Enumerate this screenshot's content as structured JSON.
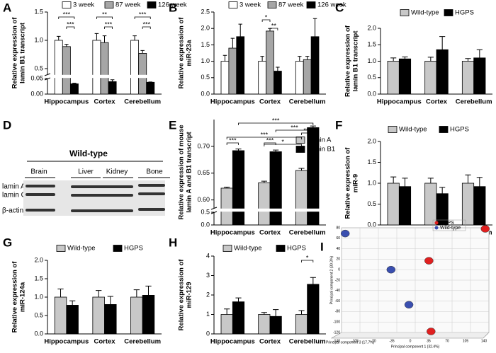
{
  "chart_data": [
    {
      "panel": "A",
      "type": "bar",
      "ylabel": [
        "Relative expression of",
        "lamin B1 transcript"
      ],
      "categories": [
        "Hippocampus",
        "Cortex",
        "Cerebellum"
      ],
      "series": [
        {
          "name": "3 week",
          "color": "#ffffff",
          "values": [
            1.0,
            1.0,
            1.0
          ],
          "errors": [
            0.07,
            0.12,
            0.08
          ]
        },
        {
          "name": "87 week",
          "color": "#a6a6a6",
          "values": [
            0.89,
            0.96,
            0.77
          ],
          "errors": [
            0.04,
            0.12,
            0.05
          ]
        },
        {
          "name": "126 week",
          "color": "#000000",
          "values": [
            0.033,
            0.04,
            0.038
          ],
          "errors": [
            0.002,
            0.006,
            0.001
          ]
        }
      ],
      "ylim": [
        0,
        1.5
      ],
      "ybreak": [
        0.05,
        0.4
      ],
      "yticks": [
        {
          "value": 0,
          "label": "0.00"
        },
        0.05,
        0.5,
        {
          "value": 1,
          "label": "1.0"
        },
        1.5
      ],
      "annotations": [
        "***",
        "***",
        "**",
        "***",
        "***",
        "***"
      ]
    },
    {
      "panel": "B",
      "type": "bar",
      "ylabel": [
        "Relative expression of",
        "miR-23a"
      ],
      "categories": [
        "Hippocampus",
        "Cortex",
        "Cerebellum"
      ],
      "series": [
        {
          "name": "3 week",
          "color": "#ffffff",
          "values": [
            1.0,
            1.0,
            1.0
          ],
          "errors": [
            0.18,
            0.15,
            0.15
          ]
        },
        {
          "name": "87 week",
          "color": "#a6a6a6",
          "values": [
            1.4,
            1.92,
            1.05
          ],
          "errors": [
            0.3,
            0.08,
            0.1
          ]
        },
        {
          "name": "126 week",
          "color": "#000000",
          "values": [
            1.75,
            0.7,
            1.75
          ],
          "errors": [
            0.38,
            0.12,
            0.55
          ]
        }
      ],
      "ylim": [
        0,
        2.5
      ],
      "yticks": [
        {
          "value": 0,
          "label": "0.0"
        },
        0.5,
        {
          "value": 1,
          "label": "1.0"
        },
        1.5,
        {
          "value": 2,
          "label": "2.0"
        },
        2.5
      ],
      "annotations": [
        "*",
        "**"
      ]
    },
    {
      "panel": "C",
      "type": "bar",
      "ylabel": [
        "Relative expression of",
        "lamin B1 transcript"
      ],
      "categories": [
        "Hippocampus",
        "Cortex",
        "Cerebellum"
      ],
      "series": [
        {
          "name": "Wild-type",
          "color": "#c8c8c8",
          "values": [
            1.0,
            1.0,
            1.0
          ],
          "errors": [
            0.1,
            0.12,
            0.08
          ]
        },
        {
          "name": "HGPS",
          "color": "#000000",
          "values": [
            1.07,
            1.35,
            1.1
          ],
          "errors": [
            0.06,
            0.4,
            0.25
          ]
        }
      ],
      "ylim": [
        0,
        2
      ],
      "yticks": [
        {
          "value": 0,
          "label": "0.0"
        },
        0.5,
        {
          "value": 1,
          "label": "1.0"
        },
        1.5,
        {
          "value": 2,
          "label": "2.0"
        }
      ]
    },
    {
      "panel": "E",
      "type": "bar",
      "ylabel": [
        "Relative expression of mouse",
        "lamin A and B1 transcript"
      ],
      "categories": [
        "Hippocampus",
        "Cortex",
        "Cerebellum"
      ],
      "series": [
        {
          "name": "Lamin A",
          "color": "#c8c8c8",
          "values": [
            0.622,
            0.632,
            0.655
          ],
          "errors": [
            0.002,
            0.003,
            0.004
          ]
        },
        {
          "name": "Lamin B1",
          "color": "#000000",
          "values": [
            0.692,
            0.69,
            0.735
          ],
          "errors": [
            0.003,
            0.003,
            0.003
          ]
        }
      ],
      "ylim": [
        0,
        0.75
      ],
      "ybreak": [
        0.5,
        0.585
      ],
      "yticks": [
        {
          "value": 0,
          "label": "0.0"
        },
        0.5,
        {
          "value": 0.6,
          "label": "0.60"
        },
        0.65,
        {
          "value": 0.7,
          "label": "0.70"
        }
      ],
      "annotations": [
        "***",
        "***",
        "***",
        "*",
        "***",
        "***",
        "***"
      ]
    },
    {
      "panel": "F",
      "type": "bar",
      "ylabel": [
        "Relative expression of",
        "miR-9"
      ],
      "categories": [
        "Hippocampus",
        "Cortex",
        "Cerebellum"
      ],
      "series": [
        {
          "name": "Wild-type",
          "color": "#c8c8c8",
          "values": [
            1.0,
            1.0,
            1.0
          ],
          "errors": [
            0.15,
            0.12,
            0.2
          ]
        },
        {
          "name": "HGPS",
          "color": "#000000",
          "values": [
            0.92,
            0.75,
            0.92
          ],
          "errors": [
            0.2,
            0.15,
            0.22
          ]
        }
      ],
      "ylim": [
        0,
        2
      ],
      "yticks": [
        {
          "value": 0,
          "label": "0.0"
        },
        0.5,
        {
          "value": 1,
          "label": "1.0"
        },
        1.5,
        {
          "value": 2,
          "label": "2.0"
        }
      ]
    },
    {
      "panel": "G",
      "type": "bar",
      "ylabel": [
        "Relative expression of",
        "miR-124a"
      ],
      "categories": [
        "Hippocampus",
        "Cortex",
        "Cerebellum"
      ],
      "series": [
        {
          "name": "Wild-type",
          "color": "#c8c8c8",
          "values": [
            1.0,
            1.0,
            1.0
          ],
          "errors": [
            0.22,
            0.18,
            0.2
          ]
        },
        {
          "name": "HGPS",
          "color": "#000000",
          "values": [
            0.78,
            0.8,
            1.05
          ],
          "errors": [
            0.12,
            0.22,
            0.25
          ]
        }
      ],
      "ylim": [
        0,
        2
      ],
      "yticks": [
        {
          "value": 0,
          "label": "0.0"
        },
        0.5,
        {
          "value": 1,
          "label": "1.0"
        },
        1.5,
        {
          "value": 2,
          "label": "2.0"
        }
      ]
    },
    {
      "panel": "H",
      "type": "bar",
      "ylabel": [
        "Relative expression of",
        "miR-129"
      ],
      "categories": [
        "Hippocampus",
        "Cortex",
        "Cerebellum"
      ],
      "series": [
        {
          "name": "Wild-type",
          "color": "#c8c8c8",
          "values": [
            1.0,
            1.0,
            1.0
          ],
          "errors": [
            0.28,
            0.1,
            0.2
          ]
        },
        {
          "name": "HGPS",
          "color": "#000000",
          "values": [
            1.65,
            0.9,
            2.55
          ],
          "errors": [
            0.2,
            0.35,
            0.35
          ]
        }
      ],
      "ylim": [
        0,
        4
      ],
      "yticks": [
        0,
        1,
        2,
        3,
        4
      ],
      "annotations": [
        "*"
      ]
    },
    {
      "panel": "I",
      "type": "scatter",
      "xlabel": "Principal component 1 (32.4%)",
      "ylabel": "Principal component 2 (30.3%)",
      "zlabel": "Principal component 3 (17.7%)",
      "xlim": [
        -140,
        140
      ],
      "xticks": [
        -140,
        -105,
        -70,
        -35,
        0,
        35,
        70,
        105,
        140
      ],
      "ylim": [
        -120,
        80
      ],
      "yticks": [
        80,
        60,
        40,
        20,
        0,
        -20,
        -40,
        -60,
        -80,
        -100,
        -120
      ],
      "series": [
        {
          "name": "HGPS",
          "color": "#e02020",
          "x": [
            133,
            26,
            30
          ],
          "y": [
            78,
            17,
            -118
          ]
        },
        {
          "name": "Wild-type",
          "color": "#3a4fb0",
          "x": [
            -133,
            -46,
            -12
          ],
          "y": [
            69,
            0,
            -67
          ]
        }
      ]
    }
  ],
  "blot": {
    "panel": "D",
    "title": "Wild-type",
    "tissues": [
      "Brain",
      "Liver",
      "Kidney",
      "Bone"
    ],
    "bands": [
      "lamin A >",
      "lamin C >",
      "β-actin >"
    ]
  }
}
